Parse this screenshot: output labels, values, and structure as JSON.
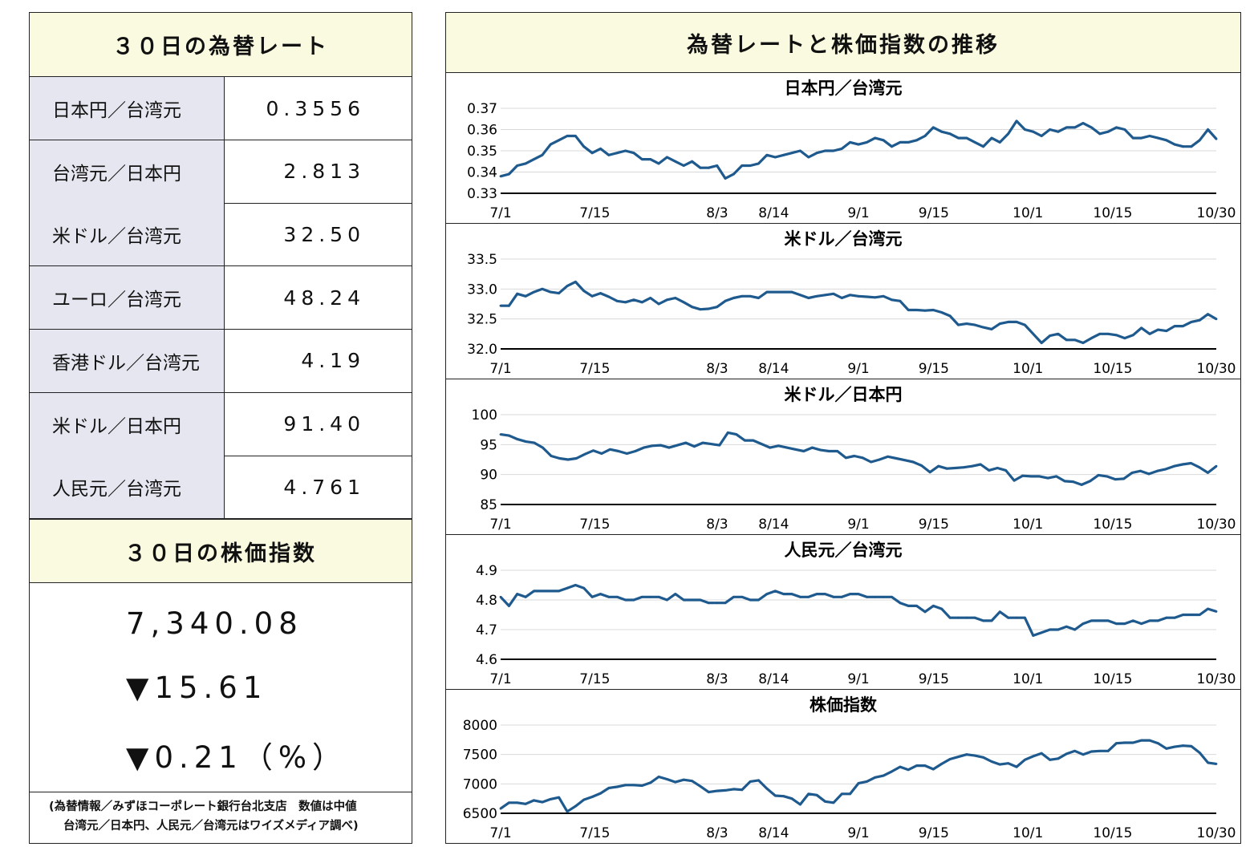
{
  "left": {
    "title": "３０日の為替レート",
    "rates": [
      {
        "label": "日本円／台湾元",
        "value": "0.3556"
      },
      {
        "label": "台湾元／日本円",
        "value": "2.813"
      },
      {
        "label": "米ドル／台湾元",
        "value": "32.50"
      },
      {
        "label": "ユーロ／台湾元",
        "value": "48.24"
      },
      {
        "label": "香港ドル／台湾元",
        "value": "4.19"
      },
      {
        "label": "米ドル／日本円",
        "value": "91.40"
      },
      {
        "label": "人民元／台湾元",
        "value": "4.761"
      }
    ],
    "stock_title": "３０日の株価指数",
    "stock_value": "7,340.08",
    "stock_change": "▼15.61",
    "stock_pct": "▼0.21（%）",
    "note_line1": "(為替情報／みずほコーポレート銀行台北支店　数値は中値",
    "note_line2": "台湾元／日本円、人民元／台湾元はワイズメディア調べ)"
  },
  "right": {
    "title": "為替レートと株価指数の推移"
  },
  "colors": {
    "line": "#1f5a8e",
    "header_bg": "#fafae0",
    "label_bg": "#e6e6f0",
    "grid": "#d9d9d9"
  },
  "chart_data": [
    {
      "type": "line",
      "title": "日本円／台湾元",
      "x_ticks": [
        "7/1",
        "7/15",
        "8/3",
        "8/14",
        "9/1",
        "9/15",
        "10/1",
        "10/15",
        "10/30"
      ],
      "x_tick_positions": [
        0,
        10,
        23,
        29,
        38,
        46,
        56,
        65,
        76
      ],
      "y_ticks": [
        "0.33",
        "0.34",
        "0.35",
        "0.36",
        "0.37"
      ],
      "ylim": [
        0.33,
        0.37
      ],
      "series": [
        {
          "values": [
            0.338,
            0.339,
            0.343,
            0.344,
            0.346,
            0.348,
            0.353,
            0.355,
            0.357,
            0.357,
            0.352,
            0.349,
            0.351,
            0.348,
            0.349,
            0.35,
            0.349,
            0.346,
            0.346,
            0.344,
            0.347,
            0.345,
            0.343,
            0.345,
            0.342,
            0.342,
            0.343,
            0.337,
            0.339,
            0.343,
            0.343,
            0.344,
            0.348,
            0.347,
            0.348,
            0.349,
            0.35,
            0.347,
            0.349,
            0.35,
            0.35,
            0.351,
            0.354,
            0.353,
            0.354,
            0.356,
            0.355,
            0.352,
            0.354,
            0.354,
            0.355,
            0.357,
            0.361,
            0.359,
            0.358,
            0.356,
            0.356,
            0.354,
            0.352,
            0.356,
            0.354,
            0.358,
            0.364,
            0.36,
            0.359,
            0.357,
            0.36,
            0.359,
            0.361,
            0.361,
            0.363,
            0.361,
            0.358,
            0.359,
            0.361,
            0.36,
            0.356,
            0.356,
            0.357,
            0.356,
            0.355,
            0.353,
            0.352,
            0.352,
            0.355,
            0.36,
            0.3556
          ]
        }
      ]
    },
    {
      "type": "line",
      "title": "米ドル／台湾元",
      "x_ticks": [
        "7/1",
        "7/15",
        "8/3",
        "8/14",
        "9/1",
        "9/15",
        "10/1",
        "10/15",
        "10/30"
      ],
      "x_tick_positions": [
        0,
        10,
        23,
        29,
        38,
        46,
        56,
        65,
        76
      ],
      "y_ticks": [
        "32.0",
        "32.5",
        "33.0",
        "33.5"
      ],
      "ylim": [
        32.0,
        33.5
      ],
      "series": [
        {
          "values": [
            32.72,
            32.72,
            32.92,
            32.88,
            32.95,
            33.0,
            32.95,
            32.93,
            33.05,
            33.12,
            32.97,
            32.88,
            32.93,
            32.87,
            32.8,
            32.78,
            32.82,
            32.78,
            32.85,
            32.75,
            32.82,
            32.85,
            32.78,
            32.7,
            32.66,
            32.67,
            32.7,
            32.8,
            32.85,
            32.88,
            32.88,
            32.85,
            32.95,
            32.95,
            32.95,
            32.95,
            32.9,
            32.85,
            32.88,
            32.9,
            32.92,
            32.85,
            32.9,
            32.88,
            32.87,
            32.86,
            32.88,
            32.82,
            32.8,
            32.65,
            32.65,
            32.64,
            32.65,
            32.61,
            32.55,
            32.4,
            32.42,
            32.4,
            32.36,
            32.33,
            32.42,
            32.45,
            32.45,
            32.4,
            32.25,
            32.1,
            32.22,
            32.25,
            32.15,
            32.15,
            32.1,
            32.18,
            32.25,
            32.25,
            32.23,
            32.18,
            32.23,
            32.35,
            32.25,
            32.32,
            32.3,
            32.38,
            32.38,
            32.45,
            32.48,
            32.58,
            32.5
          ]
        }
      ]
    },
    {
      "type": "line",
      "title": "米ドル／日本円",
      "x_ticks": [
        "7/1",
        "7/15",
        "8/3",
        "8/14",
        "9/1",
        "9/15",
        "10/1",
        "10/15",
        "10/30"
      ],
      "x_tick_positions": [
        0,
        10,
        23,
        29,
        38,
        46,
        56,
        65,
        76
      ],
      "y_ticks": [
        "85",
        "90",
        "95",
        "100"
      ],
      "ylim": [
        85,
        100
      ],
      "series": [
        {
          "values": [
            96.7,
            96.5,
            95.9,
            95.5,
            95.3,
            94.5,
            93.1,
            92.7,
            92.5,
            92.7,
            93.4,
            94.0,
            93.5,
            94.2,
            93.9,
            93.5,
            93.9,
            94.5,
            94.8,
            94.9,
            94.5,
            94.9,
            95.3,
            94.7,
            95.3,
            95.1,
            94.9,
            97.0,
            96.7,
            95.7,
            95.7,
            95.1,
            94.5,
            94.8,
            94.5,
            94.2,
            93.9,
            94.5,
            94.1,
            93.9,
            93.9,
            92.8,
            93.1,
            92.8,
            92.1,
            92.5,
            93.0,
            92.7,
            92.4,
            92.1,
            91.5,
            90.4,
            91.4,
            91.0,
            91.1,
            91.2,
            91.4,
            91.7,
            90.7,
            91.1,
            90.7,
            89.0,
            89.8,
            89.7,
            89.7,
            89.4,
            89.7,
            88.9,
            88.8,
            88.3,
            88.9,
            89.9,
            89.7,
            89.2,
            89.3,
            90.3,
            90.6,
            90.1,
            90.6,
            90.9,
            91.4,
            91.7,
            91.9,
            91.2,
            90.3,
            91.4
          ]
        }
      ]
    },
    {
      "type": "line",
      "title": "人民元／台湾元",
      "x_ticks": [
        "7/1",
        "7/15",
        "8/3",
        "8/14",
        "9/1",
        "9/15",
        "10/1",
        "10/15",
        "10/30"
      ],
      "x_tick_positions": [
        0,
        10,
        23,
        29,
        38,
        46,
        56,
        65,
        76
      ],
      "y_ticks": [
        "4.6",
        "4.7",
        "4.8",
        "4.9"
      ],
      "ylim": [
        4.6,
        4.9
      ],
      "series": [
        {
          "values": [
            4.81,
            4.78,
            4.82,
            4.81,
            4.83,
            4.83,
            4.83,
            4.83,
            4.84,
            4.85,
            4.84,
            4.81,
            4.82,
            4.81,
            4.81,
            4.8,
            4.8,
            4.81,
            4.81,
            4.81,
            4.8,
            4.82,
            4.8,
            4.8,
            4.8,
            4.79,
            4.79,
            4.79,
            4.81,
            4.81,
            4.8,
            4.8,
            4.82,
            4.83,
            4.82,
            4.82,
            4.81,
            4.81,
            4.82,
            4.82,
            4.81,
            4.81,
            4.82,
            4.82,
            4.81,
            4.81,
            4.81,
            4.81,
            4.79,
            4.78,
            4.78,
            4.76,
            4.78,
            4.77,
            4.74,
            4.74,
            4.74,
            4.74,
            4.73,
            4.73,
            4.76,
            4.74,
            4.74,
            4.74,
            4.68,
            4.69,
            4.7,
            4.7,
            4.71,
            4.7,
            4.72,
            4.73,
            4.73,
            4.73,
            4.72,
            4.72,
            4.73,
            4.72,
            4.73,
            4.73,
            4.74,
            4.74,
            4.75,
            4.75,
            4.75,
            4.77,
            4.761
          ]
        }
      ]
    },
    {
      "type": "line",
      "title": "株価指数",
      "x_ticks": [
        "7/1",
        "7/15",
        "8/3",
        "8/14",
        "9/1",
        "9/15",
        "10/1",
        "10/15",
        "10/30"
      ],
      "x_tick_positions": [
        0,
        10,
        23,
        29,
        38,
        46,
        56,
        65,
        76
      ],
      "y_ticks": [
        "6500",
        "7000",
        "7500",
        "8000"
      ],
      "ylim": [
        6500,
        8000
      ],
      "series": [
        {
          "values": [
            6580,
            6680,
            6680,
            6660,
            6720,
            6690,
            6740,
            6770,
            6530,
            6620,
            6730,
            6780,
            6840,
            6930,
            6950,
            6980,
            6980,
            6970,
            7020,
            7120,
            7080,
            7030,
            7070,
            7050,
            6960,
            6860,
            6880,
            6890,
            6910,
            6900,
            7040,
            7060,
            6920,
            6800,
            6790,
            6750,
            6650,
            6830,
            6810,
            6700,
            6680,
            6830,
            6830,
            7010,
            7040,
            7110,
            7140,
            7210,
            7290,
            7240,
            7310,
            7310,
            7250,
            7340,
            7420,
            7460,
            7500,
            7480,
            7450,
            7380,
            7330,
            7350,
            7290,
            7410,
            7470,
            7520,
            7410,
            7430,
            7510,
            7560,
            7500,
            7550,
            7560,
            7560,
            7690,
            7700,
            7700,
            7740,
            7740,
            7690,
            7600,
            7630,
            7650,
            7640,
            7530,
            7360,
            7340.08
          ]
        }
      ]
    }
  ]
}
